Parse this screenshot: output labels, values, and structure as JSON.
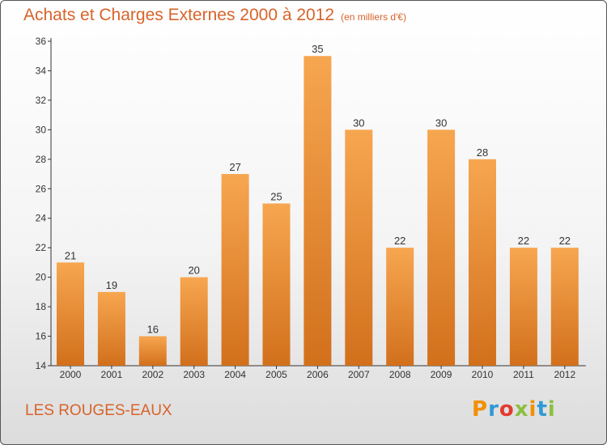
{
  "header": {
    "title": "Achats et Charges Externes 2000 à 2012",
    "unit": "(en milliers d'€)"
  },
  "footer": {
    "place": "LES ROUGES-EAUX",
    "brand_letters": [
      "P",
      "r",
      "o",
      "x",
      "i",
      "t",
      "i"
    ],
    "brand_colors": [
      "#f29000",
      "#2f9ad7",
      "#e23b2e",
      "#8dbf3f",
      "#f29000",
      "#2f9ad7",
      "#8dbf3f"
    ]
  },
  "colors": {
    "bar_top": "#f7a650",
    "bar_bottom": "#d2701c",
    "text_accent": "#d8632a",
    "axis": "#333333"
  },
  "chart_data": {
    "type": "bar",
    "title": "Achats et Charges Externes 2000 à 2012",
    "subtitle": "(en milliers d'€)",
    "categories": [
      "2000",
      "2001",
      "2002",
      "2003",
      "2004",
      "2005",
      "2006",
      "2007",
      "2008",
      "2009",
      "2010",
      "2011",
      "2012"
    ],
    "values": [
      21,
      19,
      16,
      20,
      27,
      25,
      35,
      30,
      22,
      30,
      28,
      22,
      22
    ],
    "data_labels": [
      "21",
      "19",
      "16",
      "20",
      "27",
      "25",
      "35",
      "30",
      "22",
      "30",
      "28",
      "22",
      "22"
    ],
    "ylim": [
      14,
      36
    ],
    "yticks": [
      "14",
      "16",
      "18",
      "20",
      "22",
      "24",
      "26",
      "28",
      "30",
      "32",
      "34",
      "36"
    ],
    "grid": false,
    "legend": "none"
  }
}
